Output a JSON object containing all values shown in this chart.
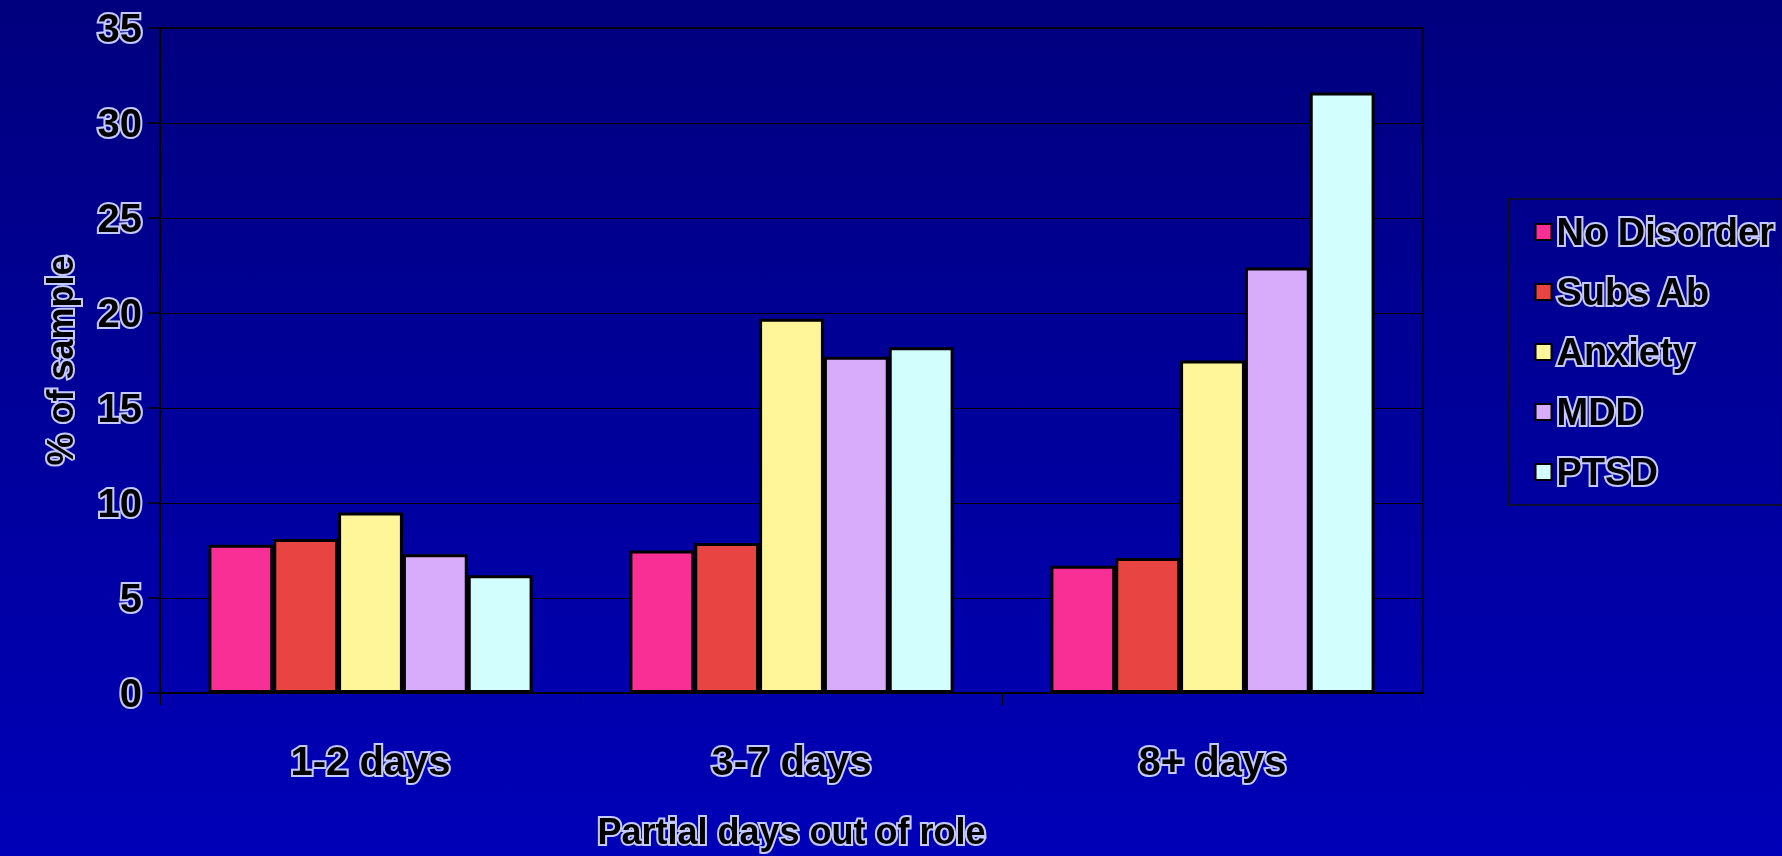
{
  "chart_data": {
    "type": "bar",
    "xlabel": "Partial days out of role",
    "ylabel": "% of sample",
    "categories": [
      "1-2 days",
      "3-7 days",
      "8+ days"
    ],
    "series": [
      {
        "name": "No Disorder",
        "color": "#f92f96",
        "values": [
          7.8,
          7.5,
          6.7
        ]
      },
      {
        "name": "Subs Ab",
        "color": "#e84542",
        "values": [
          8.1,
          7.9,
          7.1
        ]
      },
      {
        "name": "Anxiety",
        "color": "#fff69a",
        "values": [
          9.5,
          19.7,
          17.5
        ]
      },
      {
        "name": "MDD",
        "color": "#d8acfb",
        "values": [
          7.3,
          17.7,
          22.4
        ]
      },
      {
        "name": "PTSD",
        "color": "#d2fffe",
        "values": [
          6.2,
          18.2,
          31.6
        ]
      }
    ],
    "ylim": [
      0,
      35
    ],
    "yticks": [
      0,
      5,
      10,
      15,
      20,
      25,
      30,
      35
    ],
    "grid": "y",
    "legend": "right"
  }
}
